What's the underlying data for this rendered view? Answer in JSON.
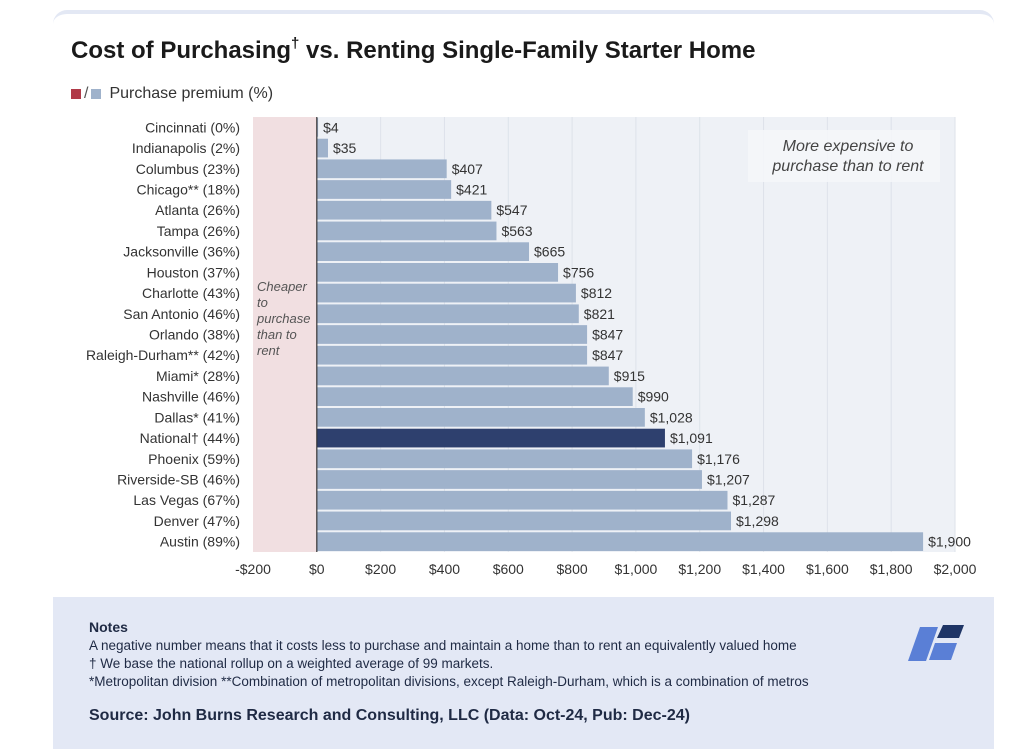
{
  "header": {
    "title": "Cost of Purchasing",
    "title_dagger": "†",
    "title_rest": " vs. Renting Single-Family Starter Home",
    "legend_slash": "/",
    "legend_label": "Purchase premium (%)"
  },
  "colors": {
    "bar": "#9fb2cb",
    "national_bar": "#2e406e",
    "cheaper_region": "#f1dfe1",
    "plot_bg": "#eef1f6",
    "legend_red": "#b03a48",
    "legend_blue": "#9fb2cb"
  },
  "chart_data": {
    "type": "bar",
    "orientation": "horizontal",
    "title": "Cost of Purchasing† vs. Renting Single-Family Starter Home",
    "legend": [
      "Purchase premium (%)"
    ],
    "categories": [
      "Cincinnati (0%)",
      "Indianapolis (2%)",
      "Columbus (23%)",
      "Chicago** (18%)",
      "Atlanta (26%)",
      "Tampa (26%)",
      "Jacksonville (36%)",
      "Houston (37%)",
      "Charlotte (43%)",
      "San Antonio (46%)",
      "Orlando (38%)",
      "Raleigh-Durham** (42%)",
      "Miami* (28%)",
      "Nashville (46%)",
      "Dallas* (41%)",
      "National† (44%)",
      "Phoenix (59%)",
      "Riverside-SB (46%)",
      "Las Vegas (67%)",
      "Denver (47%)",
      "Austin (89%)"
    ],
    "values": [
      4,
      35,
      407,
      421,
      547,
      563,
      665,
      756,
      812,
      821,
      847,
      847,
      915,
      990,
      1028,
      1091,
      1176,
      1207,
      1287,
      1298,
      1900
    ],
    "value_labels": [
      "$4",
      "$35",
      "$407",
      "$421",
      "$547",
      "$563",
      "$665",
      "$756",
      "$812",
      "$821",
      "$847",
      "$847",
      "$915",
      "$990",
      "$1,028",
      "$1,091",
      "$1,176",
      "$1,207",
      "$1,287",
      "$1,298",
      "$1,900"
    ],
    "highlight_index": 15,
    "xlim": [
      -200,
      2000
    ],
    "xticks": [
      -200,
      0,
      200,
      400,
      600,
      800,
      1000,
      1200,
      1400,
      1600,
      1800,
      2000
    ],
    "xtick_labels": [
      "-$200",
      "$0",
      "$200",
      "$400",
      "$600",
      "$800",
      "$1,000",
      "$1,200",
      "$1,400",
      "$1,600",
      "$1,800",
      "$2,000"
    ],
    "grid": true,
    "annotations": {
      "cheaper": [
        "Cheaper",
        "to",
        "purchase",
        "than to",
        "rent"
      ],
      "more_expensive": [
        "More expensive to",
        "purchase than to rent"
      ]
    }
  },
  "notes": {
    "title": "Notes",
    "lines": [
      "A negative number means that it costs less to purchase and maintain a home than to rent an equivalently valued home",
      "† We base the national rollup on a weighted average of 99 markets.",
      "*Metropolitan division **Combination of metropolitan divisions, except Raleigh-Durham, which is a combination of metros"
    ],
    "source": "Source: John Burns Research and Consulting, LLC (Data: Oct-24, Pub: Dec-24)"
  }
}
